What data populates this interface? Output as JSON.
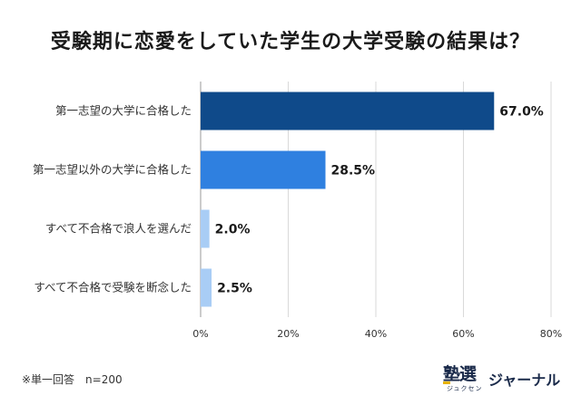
{
  "chart_data": {
    "type": "bar",
    "orientation": "horizontal",
    "title": "受験期に恋愛をしていた学生の大学受験の結果は？",
    "xlabel": "",
    "ylabel": "",
    "categories": [
      "第一志望の大学に合格した",
      "第一志望以外の大学に合格した",
      "すべて不合格で浪人を選んだ",
      "すべて不合格で受験を断念した"
    ],
    "values": [
      67.0,
      28.5,
      2.0,
      2.5
    ],
    "value_labels": [
      "67.0%",
      "28.5%",
      "2.0%",
      "2.5%"
    ],
    "bar_colors": [
      "#0f4a8a",
      "#2f80e0",
      "#a9cdf5",
      "#a9cdf5"
    ],
    "xlim": [
      0,
      80
    ],
    "x_ticks": [
      0,
      20,
      40,
      60,
      80
    ],
    "x_tick_labels": [
      "0%",
      "20%",
      "40%",
      "60%",
      "80%"
    ],
    "grid": true
  },
  "footnote": "※単一回答　n=200",
  "logo": {
    "kanji": "塾選",
    "kana": "ジュクセン",
    "journal": "ジャーナル"
  }
}
